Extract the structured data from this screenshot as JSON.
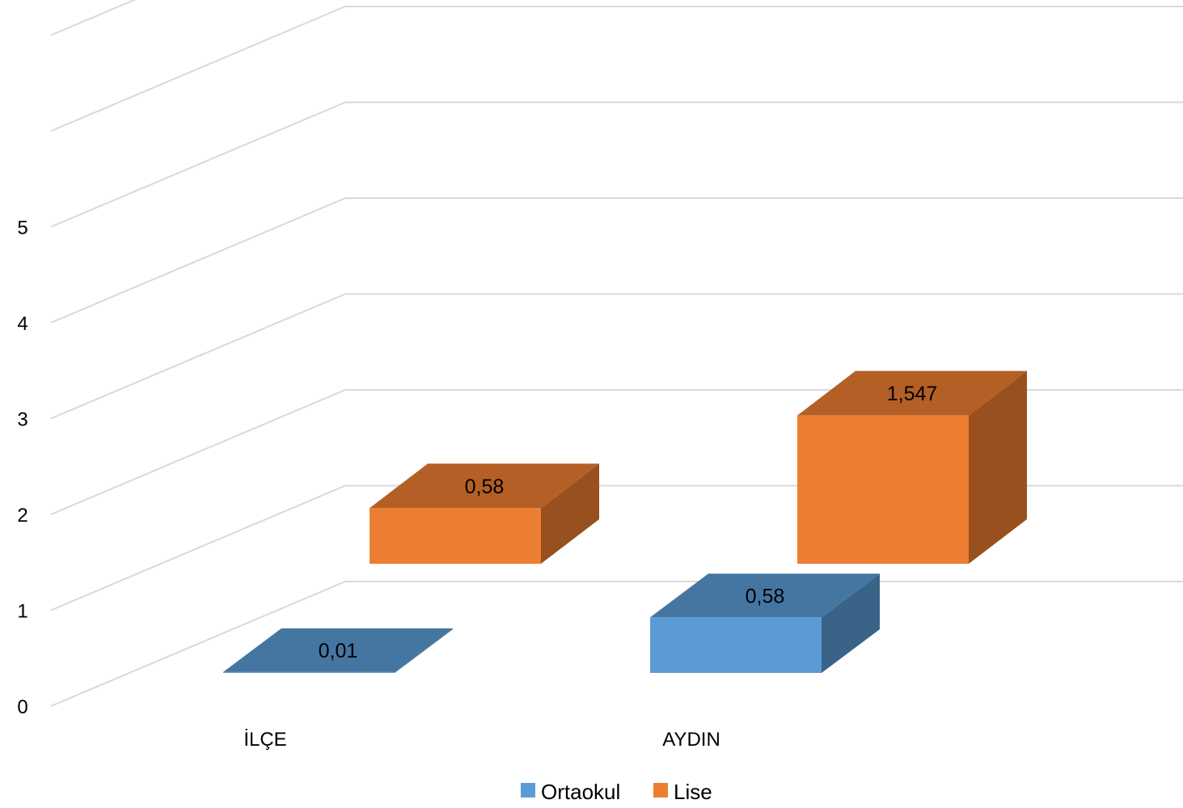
{
  "chart_data": {
    "type": "bar",
    "style": "3d-column",
    "categories": [
      "İLÇE",
      "AYDIN"
    ],
    "series": [
      {
        "name": "Ortaokul",
        "values": [
          0.01,
          0.58
        ],
        "labels": [
          "0,01",
          "0,58"
        ],
        "color": "#5b9bd5"
      },
      {
        "name": "Lise",
        "values": [
          0.58,
          1.547
        ],
        "labels": [
          "0,58",
          "1,547"
        ],
        "color": "#ed7d31"
      }
    ],
    "yticks": [
      "0",
      "1",
      "2",
      "3",
      "4",
      "5"
    ],
    "ylim": [
      0,
      7
    ],
    "grid": true,
    "legend": "bottom"
  }
}
